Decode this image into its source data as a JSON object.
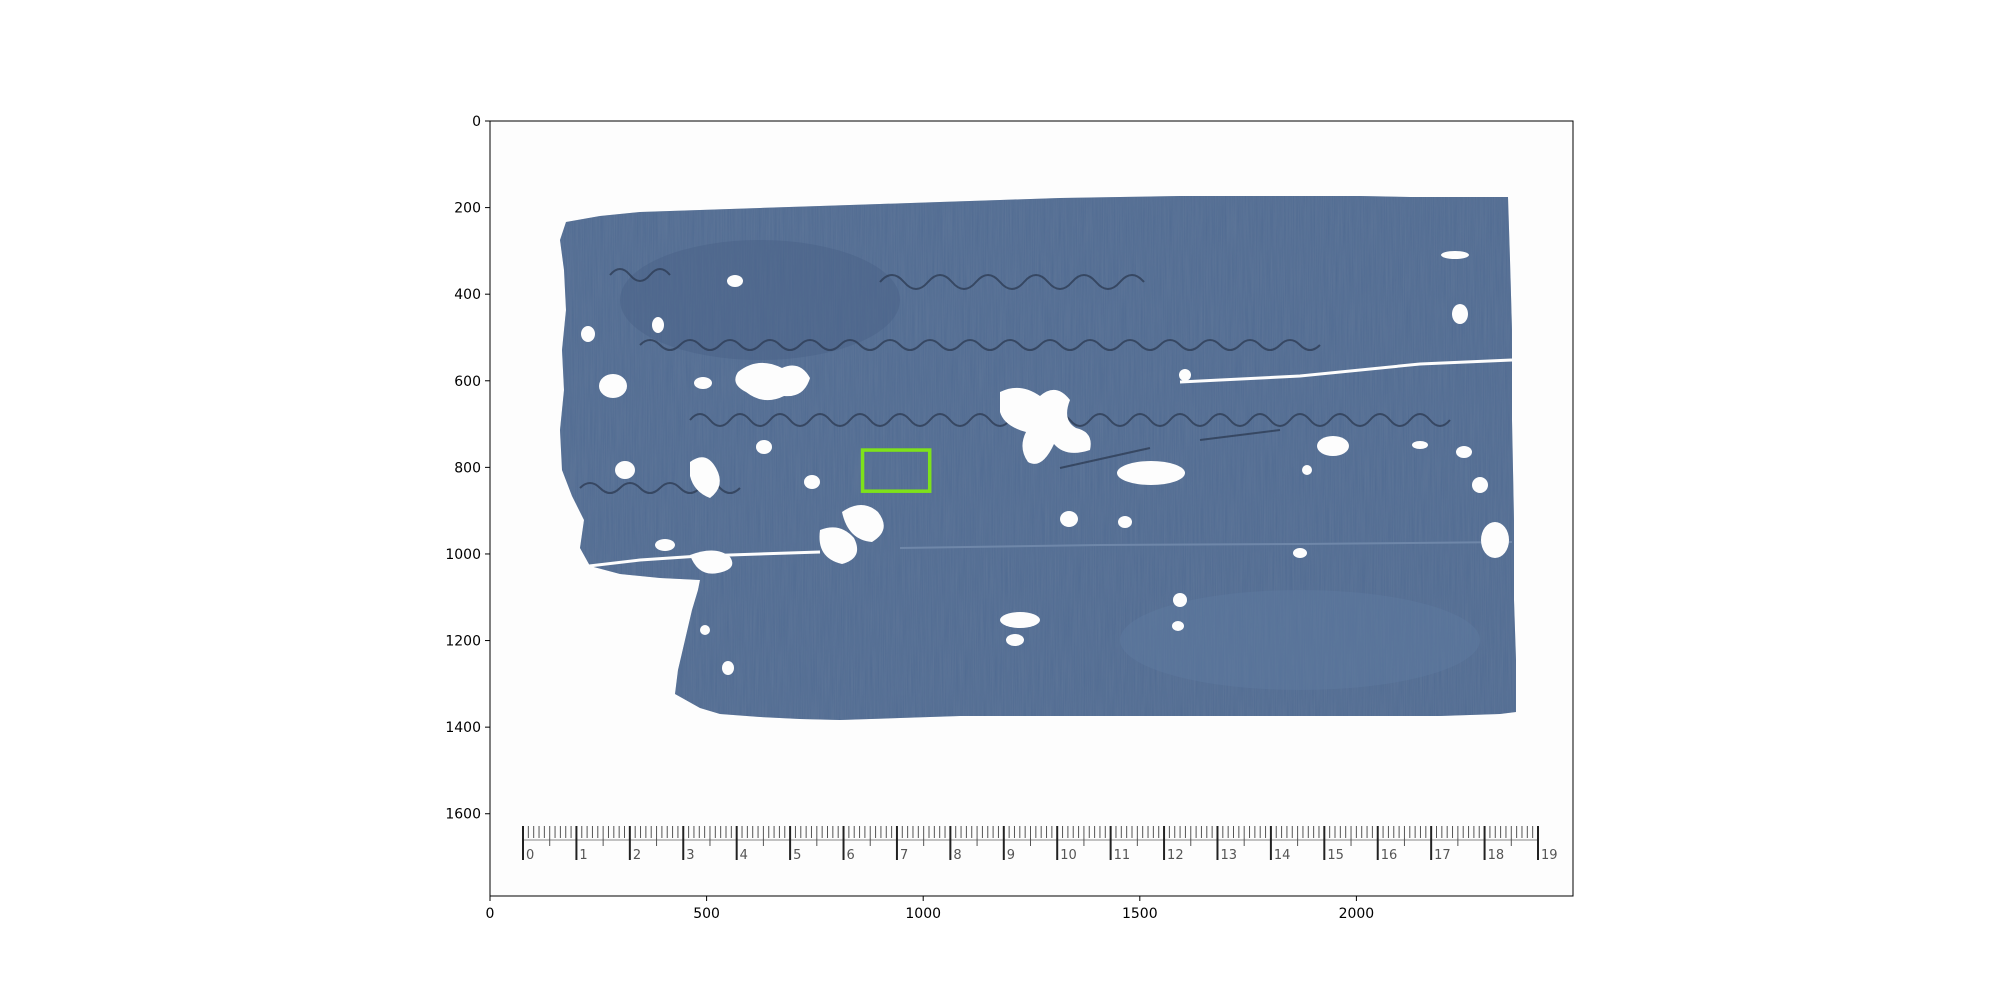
{
  "figure": {
    "x_axis": {
      "range": [
        0,
        2500
      ],
      "ticks": [
        "0",
        "500",
        "1000",
        "1500",
        "2000"
      ]
    },
    "y_axis": {
      "range": [
        0,
        1790
      ],
      "inverted": true,
      "ticks": [
        "0",
        "200",
        "400",
        "600",
        "800",
        "1000",
        "1200",
        "1400",
        "1600"
      ]
    },
    "image": {
      "subject": "fragment of blue-grey papyrus with handwritten Greek cursive lines",
      "papyrus_color": "#4f6a91",
      "background_color": "#fdfdfd"
    },
    "highlight_box": {
      "color": "#7ee21a",
      "x": [
        860,
        1015
      ],
      "y": [
        760,
        855
      ]
    },
    "ruler": {
      "labels": [
        "0",
        "1",
        "2",
        "3",
        "4",
        "5",
        "6",
        "7",
        "8",
        "9",
        "10",
        "11",
        "12",
        "13",
        "14",
        "15",
        "16",
        "17",
        "18",
        "19"
      ]
    }
  }
}
